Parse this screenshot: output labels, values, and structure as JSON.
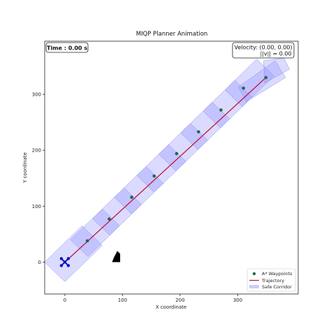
{
  "chart_data": {
    "type": "scatter",
    "title": "MIQP Planner Animation",
    "xlabel": "X coordinate",
    "ylabel": "Y coordinate",
    "xlim": [
      -35,
      405
    ],
    "ylim": [
      -57,
      395
    ],
    "xticks": [
      0,
      100,
      200,
      300
    ],
    "yticks": [
      0,
      100,
      200,
      300
    ],
    "xtick_labels": [
      "0",
      "100",
      "200",
      "300"
    ],
    "ytick_labels": [
      "0",
      "100",
      "200",
      "300"
    ],
    "grid": false,
    "legend_position": "bottom-right",
    "time_text": "Time : 0.00 s",
    "velocity_lines": [
      "Velocity: (0.00, 0.00)",
      "||v|| = 0.00"
    ],
    "series": [
      {
        "name": "A* Waypoints",
        "kind": "scatter",
        "color": "#1a6b4a",
        "points": [
          [
            0,
            0
          ],
          [
            39,
            38
          ],
          [
            77,
            77
          ],
          [
            116,
            116
          ],
          [
            155,
            154
          ],
          [
            194,
            194
          ],
          [
            232,
            233
          ],
          [
            271,
            272
          ],
          [
            310,
            311
          ],
          [
            349,
            330
          ]
        ]
      },
      {
        "name": "Trajectory",
        "kind": "line",
        "color": "#c0143c",
        "points": [
          [
            0,
            0
          ],
          [
            349,
            330
          ]
        ]
      },
      {
        "name": "Safe Corridor",
        "kind": "polygon",
        "color": "#9999ff",
        "corridors": [
          [
            [
              -35,
              0
            ],
            [
              0,
              -35
            ],
            [
              65,
              30
            ],
            [
              30,
              65
            ]
          ],
          [
            [
              10,
              40
            ],
            [
              40,
              10
            ],
            [
              95,
              65
            ],
            [
              65,
              95
            ]
          ],
          [
            [
              48,
              78
            ],
            [
              78,
              48
            ],
            [
              133,
              103
            ],
            [
              103,
              133
            ]
          ],
          [
            [
              86,
              116
            ],
            [
              116,
              86
            ],
            [
              171,
              141
            ],
            [
              141,
              171
            ]
          ],
          [
            [
              125,
              155
            ],
            [
              155,
              125
            ],
            [
              210,
              180
            ],
            [
              180,
              210
            ]
          ],
          [
            [
              163,
              193
            ],
            [
              193,
              163
            ],
            [
              248,
              218
            ],
            [
              218,
              248
            ]
          ],
          [
            [
              201,
              231
            ],
            [
              231,
              201
            ],
            [
              286,
              256
            ],
            [
              256,
              286
            ]
          ],
          [
            [
              240,
              270
            ],
            [
              270,
              240
            ],
            [
              325,
              295
            ],
            [
              295,
              325
            ]
          ],
          [
            [
              278,
              308
            ],
            [
              308,
              278
            ],
            [
              363,
              333
            ],
            [
              333,
              363
            ]
          ],
          [
            [
              301,
              313
            ],
            [
              315,
              287
            ],
            [
              383,
              330
            ],
            [
              365,
              360
            ]
          ],
          [
            [
              345,
              360
            ],
            [
              347,
              320
            ],
            [
              390,
              345
            ],
            [
              380,
              365
            ]
          ]
        ]
      }
    ],
    "obstacle": [
      [
        82,
        0
      ],
      [
        96,
        0
      ],
      [
        96,
        15
      ],
      [
        91,
        20
      ],
      [
        85,
        8
      ]
    ]
  },
  "legend": [
    {
      "label": "A* Waypoints",
      "marker": "dot",
      "color": "#1a6b4a"
    },
    {
      "label": "Trajectory",
      "marker": "line",
      "color": "#c0143c"
    },
    {
      "label": "Safe Corridor",
      "marker": "patch",
      "color": "#9999ff"
    }
  ],
  "drone": {
    "icon": "drone-icon",
    "color": "#1010c8"
  }
}
